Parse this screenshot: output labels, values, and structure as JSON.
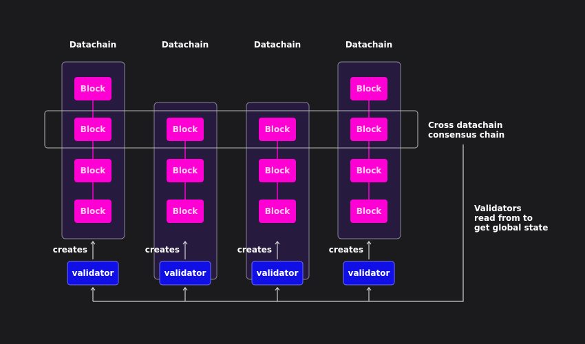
{
  "chains": [
    {
      "title": "Datachain",
      "blocks": [
        "Block",
        "Block",
        "Block",
        "Block"
      ],
      "creates": "creates",
      "validator": "validator"
    },
    {
      "title": "Datachain",
      "blocks": [
        "Block",
        "Block",
        "Block"
      ],
      "creates": "creates",
      "validator": "validator"
    },
    {
      "title": "Datachain",
      "blocks": [
        "Block",
        "Block",
        "Block"
      ],
      "creates": "creates",
      "validator": "validator"
    },
    {
      "title": "Datachain",
      "blocks": [
        "Block",
        "Block",
        "Block",
        "Block"
      ],
      "creates": "creates",
      "validator": "validator"
    }
  ],
  "cross_chain_label": [
    "Cross datachain",
    "consensus chain"
  ],
  "validators_note": [
    "Validators",
    "read from to",
    "get global state"
  ],
  "colors": {
    "background": "#1b1b1d",
    "chain_fill": "#261a3f",
    "block": "#ff00d4",
    "validator": "#1010e6",
    "line": "#d0d0d0"
  }
}
